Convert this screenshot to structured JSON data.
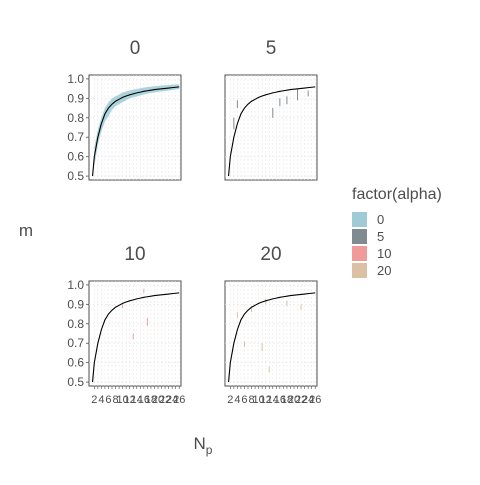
{
  "chart_data": {
    "type": "line",
    "facet_var": "alpha",
    "ylabel": "m",
    "xlabel_main": "N",
    "xlabel_sub": "p",
    "ylim": [
      0.48,
      1.02
    ],
    "xlim": [
      0.5,
      26.5
    ],
    "x_ticks": [
      2,
      3,
      4,
      5,
      6,
      7,
      8,
      9,
      10,
      11,
      12,
      13,
      14,
      15,
      16,
      17,
      18,
      19,
      20,
      21,
      22,
      23,
      24,
      25,
      26
    ],
    "y_ticks": [
      0.5,
      0.6,
      0.7,
      0.8,
      0.9,
      1.0
    ],
    "y_tick_labels": [
      "0.5",
      "0.6",
      "0.7",
      "0.8",
      "0.9",
      "1.0"
    ],
    "x_tick_labels": [
      "2",
      "4",
      "6",
      "8",
      "10",
      "12",
      "14",
      "16",
      "18",
      "20",
      "22",
      "24",
      "26"
    ],
    "grid": true,
    "legend": {
      "title": "factor(alpha)",
      "position": "right",
      "entries": [
        {
          "label": "0",
          "color": "#9ecbd6"
        },
        {
          "label": "5",
          "color": "#7f8b90"
        },
        {
          "label": "10",
          "color": "#f09a9a"
        },
        {
          "label": "20",
          "color": "#dcc0a4"
        }
      ]
    },
    "reference_curve": {
      "x": [
        1.5,
        2,
        3,
        4,
        5,
        6,
        7,
        8,
        9,
        10,
        11,
        12,
        13,
        14,
        15,
        16,
        17,
        18,
        19,
        20,
        21,
        22,
        23,
        24,
        25,
        26
      ],
      "y": [
        0.5,
        0.6,
        0.7,
        0.77,
        0.82,
        0.85,
        0.87,
        0.885,
        0.895,
        0.905,
        0.912,
        0.918,
        0.923,
        0.928,
        0.932,
        0.936,
        0.939,
        0.942,
        0.945,
        0.947,
        0.949,
        0.951,
        0.953,
        0.955,
        0.957,
        0.959
      ]
    },
    "panels": [
      {
        "label": "0",
        "color": "#9ecbd6",
        "band": {
          "x": [
            2,
            3,
            4,
            5,
            6,
            7,
            8,
            9,
            10,
            11,
            12,
            13,
            14,
            15,
            16,
            17,
            18,
            19,
            20,
            21,
            22,
            23,
            24,
            25,
            26
          ],
          "low": [
            0.55,
            0.66,
            0.73,
            0.78,
            0.81,
            0.84,
            0.86,
            0.87,
            0.88,
            0.89,
            0.9,
            0.905,
            0.91,
            0.915,
            0.92,
            0.925,
            0.928,
            0.93,
            0.933,
            0.936,
            0.938,
            0.94,
            0.943,
            0.945,
            0.948
          ],
          "high": [
            0.65,
            0.74,
            0.8,
            0.85,
            0.88,
            0.9,
            0.91,
            0.92,
            0.93,
            0.935,
            0.94,
            0.945,
            0.948,
            0.952,
            0.955,
            0.958,
            0.96,
            0.962,
            0.964,
            0.966,
            0.967,
            0.968,
            0.97,
            0.971,
            0.972
          ]
        },
        "segments": []
      },
      {
        "label": "5",
        "color": "#7f8b90",
        "band": null,
        "segments": [
          {
            "x": 3,
            "y0": 0.74,
            "y1": 0.8
          },
          {
            "x": 4,
            "y0": 0.85,
            "y1": 0.89
          },
          {
            "x": 14,
            "y0": 0.8,
            "y1": 0.85
          },
          {
            "x": 16,
            "y0": 0.86,
            "y1": 0.9
          },
          {
            "x": 18,
            "y0": 0.87,
            "y1": 0.91
          },
          {
            "x": 21,
            "y0": 0.89,
            "y1": 0.95
          },
          {
            "x": 24,
            "y0": 0.91,
            "y1": 0.94
          }
        ]
      },
      {
        "label": "10",
        "color": "#f09a9a",
        "band": null,
        "segments": [
          {
            "x": 10,
            "y0": 0.88,
            "y1": 0.9
          },
          {
            "x": 13,
            "y0": 0.72,
            "y1": 0.75
          },
          {
            "x": 16,
            "y0": 0.96,
            "y1": 0.98
          },
          {
            "x": 17,
            "y0": 0.79,
            "y1": 0.83
          }
        ]
      },
      {
        "label": "20",
        "color": "#dcc0a4",
        "band": null,
        "segments": [
          {
            "x": 4,
            "y0": 0.83,
            "y1": 0.86
          },
          {
            "x": 6,
            "y0": 0.68,
            "y1": 0.71
          },
          {
            "x": 8,
            "y0": 0.86,
            "y1": 0.89
          },
          {
            "x": 11,
            "y0": 0.66,
            "y1": 0.7
          },
          {
            "x": 12,
            "y0": 0.9,
            "y1": 0.93
          },
          {
            "x": 13,
            "y0": 0.55,
            "y1": 0.58
          },
          {
            "x": 18,
            "y0": 0.89,
            "y1": 0.92
          },
          {
            "x": 22,
            "y0": 0.87,
            "y1": 0.9
          }
        ]
      }
    ]
  }
}
